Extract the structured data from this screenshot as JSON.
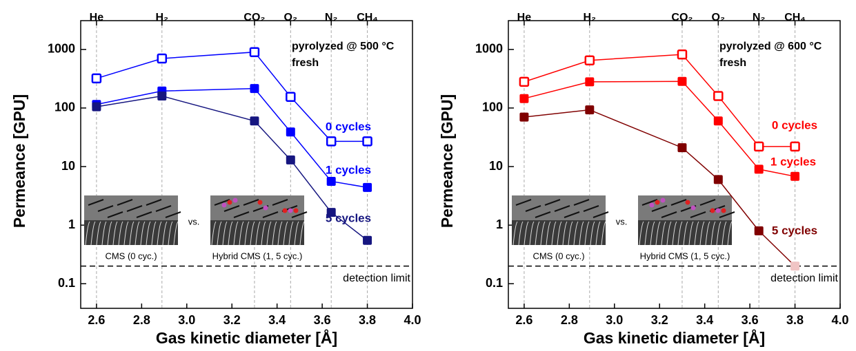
{
  "chart_data": [
    {
      "type": "line",
      "ylog": true,
      "xlabel": "Gas kinetic diameter [Å]",
      "ylabel": "Permeance [GPU]",
      "title": "pyrolyzed @ 500 °C",
      "subtitle": "fresh",
      "x": [
        2.6,
        2.89,
        3.3,
        3.46,
        3.64,
        3.8
      ],
      "xlim": [
        2.53,
        4.0
      ],
      "ylim": [
        0.038,
        3100
      ],
      "xticks": [
        2.6,
        2.8,
        {
          "value": 3,
          "label": "3.0"
        },
        3.2,
        3.4,
        3.6,
        3.8,
        {
          "value": 4,
          "label": "4.0"
        }
      ],
      "yticks": [
        0.1,
        1,
        10,
        100,
        1000
      ],
      "top_ticks": [
        {
          "value": 2.6,
          "label": "He"
        },
        {
          "value": 2.89,
          "label": "H₂"
        },
        {
          "value": 3.3,
          "label": "CO₂"
        },
        {
          "value": 3.46,
          "label": "O₂"
        },
        {
          "value": 3.64,
          "label": "N₂"
        },
        {
          "value": 3.8,
          "label": "CH₄"
        }
      ],
      "detection_limit": {
        "value": 0.2,
        "label": "detection limit"
      },
      "inset": {
        "left_label": "CMS (0 cyc.)",
        "separator": "vs.",
        "right_label": "Hybrid CMS (1, 5 cyc.)"
      },
      "series": [
        {
          "name": "0 cycles",
          "color": "#0000ff",
          "marker": "open",
          "values": [
            320,
            700,
            900,
            155,
            27,
            27
          ]
        },
        {
          "name": "1 cycles",
          "color": "#0000ff",
          "marker": "filled",
          "values": [
            115,
            195,
            215,
            39,
            5.6,
            4.4
          ]
        },
        {
          "name": "5 cycles",
          "color": "#161680",
          "marker": "filled",
          "values": [
            105,
            160,
            60,
            13,
            1.65,
            0.55
          ]
        }
      ]
    },
    {
      "type": "line",
      "ylog": true,
      "xlabel": "Gas kinetic diameter [Å]",
      "ylabel": "Permeance [GPU]",
      "title": "pyrolyzed @ 600 °C",
      "subtitle": "fresh",
      "x": [
        2.6,
        2.89,
        3.3,
        3.46,
        3.64,
        3.8
      ],
      "xlim": [
        2.53,
        4.0
      ],
      "ylim": [
        0.038,
        3100
      ],
      "xticks": [
        2.6,
        2.8,
        {
          "value": 3,
          "label": "3.0"
        },
        3.2,
        3.4,
        3.6,
        3.8,
        {
          "value": 4,
          "label": "4.0"
        }
      ],
      "yticks": [
        0.1,
        1,
        10,
        100,
        1000
      ],
      "top_ticks": [
        {
          "value": 2.6,
          "label": "He"
        },
        {
          "value": 2.89,
          "label": "H₂"
        },
        {
          "value": 3.3,
          "label": "CO₂"
        },
        {
          "value": 3.46,
          "label": "O₂"
        },
        {
          "value": 3.64,
          "label": "N₂"
        },
        {
          "value": 3.8,
          "label": "CH₄"
        }
      ],
      "detection_limit": {
        "value": 0.2,
        "label": "detection limit"
      },
      "inset": {
        "left_label": "CMS (0 cyc.)",
        "separator": "vs.",
        "right_label": "Hybrid CMS (1, 5 cyc.)"
      },
      "series": [
        {
          "name": "0 cycles",
          "color": "#ff0000",
          "marker": "open",
          "values": [
            280,
            650,
            820,
            160,
            22,
            22
          ]
        },
        {
          "name": "1 cycles",
          "color": "#ff0000",
          "marker": "filled",
          "values": [
            145,
            280,
            285,
            60,
            9,
            6.8
          ]
        },
        {
          "name": "5 cycles",
          "color": "#800000",
          "marker": "filled",
          "values": [
            70,
            93,
            21,
            6,
            0.8,
            0.2
          ],
          "point_colors": [
            null,
            null,
            null,
            null,
            null,
            "#f0c4c4"
          ]
        }
      ]
    }
  ]
}
